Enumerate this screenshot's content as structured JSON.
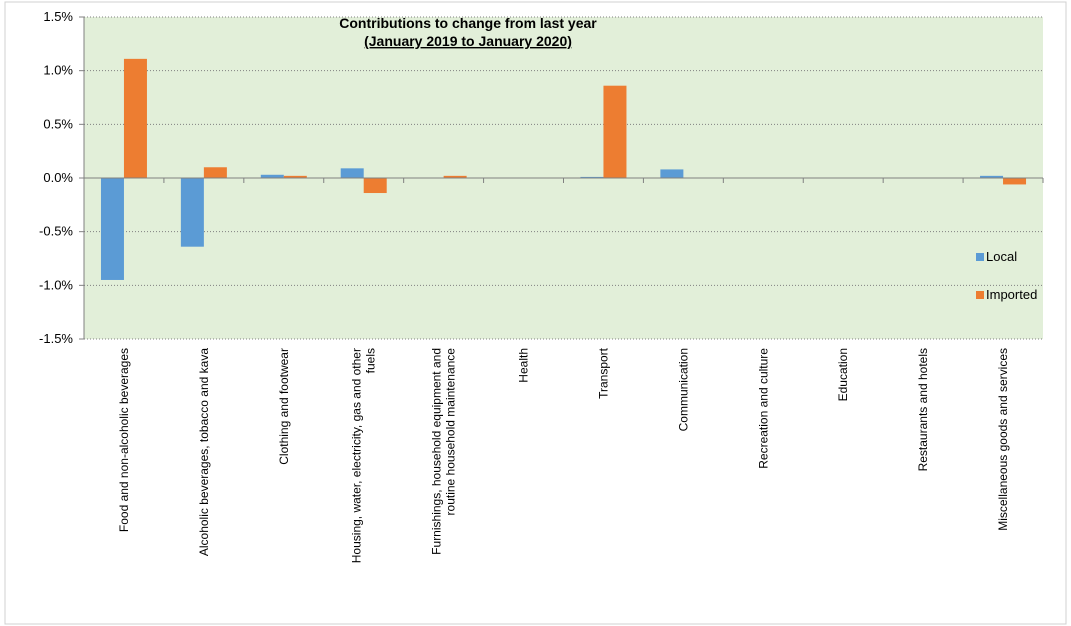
{
  "chart_data": {
    "type": "bar",
    "title": "Contributions to change from last year",
    "subtitle": "(January 2019 to January 2020)",
    "xlabel": "",
    "ylabel": "",
    "ylim": [
      -1.5,
      1.5
    ],
    "y_ticks": [
      1.5,
      1.0,
      0.5,
      0.0,
      -0.5,
      -1.0,
      -1.5
    ],
    "y_tick_labels": [
      "1.5%",
      "1.0%",
      "0.5%",
      "0.0%",
      "-0.5%",
      "-1.0%",
      "-1.5%"
    ],
    "grid": true,
    "legend_position": "right",
    "categories": [
      [
        "Food and non-alcoholic beverages"
      ],
      [
        "Alcoholic beverages, tobacco and kava"
      ],
      [
        "Clothing and footwear"
      ],
      [
        "Housing, water, electricity, gas and other",
        "fuels"
      ],
      [
        "Furnishings, household equipment and",
        "routine household maintenance"
      ],
      [
        "Health"
      ],
      [
        "Transport"
      ],
      [
        "Communication"
      ],
      [
        "Recreation and culture"
      ],
      [
        "Education"
      ],
      [
        "Restaurants and hotels"
      ],
      [
        "Miscellaneous goods and services"
      ]
    ],
    "series": [
      {
        "name": "Local",
        "color": "#5B9BD5",
        "values": [
          -0.95,
          -0.64,
          0.03,
          0.09,
          0.0,
          0.0,
          0.01,
          0.08,
          0.0,
          0.0,
          0.0,
          0.02
        ]
      },
      {
        "name": "Imported",
        "color": "#ED7D31",
        "values": [
          1.11,
          0.1,
          0.02,
          -0.14,
          0.02,
          0.0,
          0.86,
          0.0,
          0.0,
          0.0,
          0.0,
          -0.06
        ]
      }
    ],
    "plot_background": "#E2EFD9",
    "gridline_color": "#808080"
  }
}
